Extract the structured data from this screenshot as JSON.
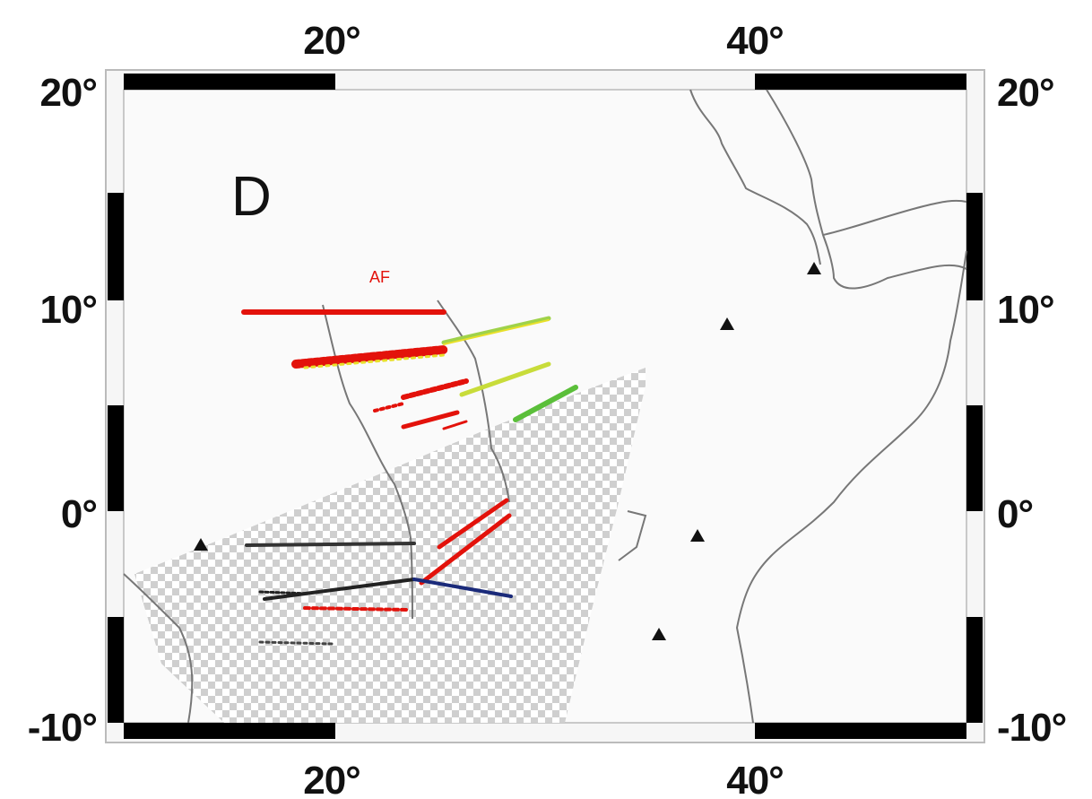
{
  "panel_label": "D",
  "region_label": "AF",
  "axes": {
    "lon_range": [
      10,
      50
    ],
    "lat_range": [
      -10,
      20
    ],
    "top_labels": [
      "20°",
      "40°"
    ],
    "bottom_labels": [
      "20°",
      "40°"
    ],
    "left_labels": [
      "20°",
      "10°",
      "0°",
      "-10°"
    ],
    "right_labels": [
      "20°",
      "10°",
      "0°",
      "-10°"
    ]
  },
  "colors": {
    "frame": "#000000",
    "coastline": "#888888",
    "hatch": "#c9c9c9",
    "red": "#e3120b",
    "yellow": "#e8e02a",
    "green": "#5bbf3a",
    "blue": "#1a2a7a",
    "black": "#222222"
  },
  "markers": "triangle",
  "icons": [
    "triangle-marker-icon"
  ]
}
